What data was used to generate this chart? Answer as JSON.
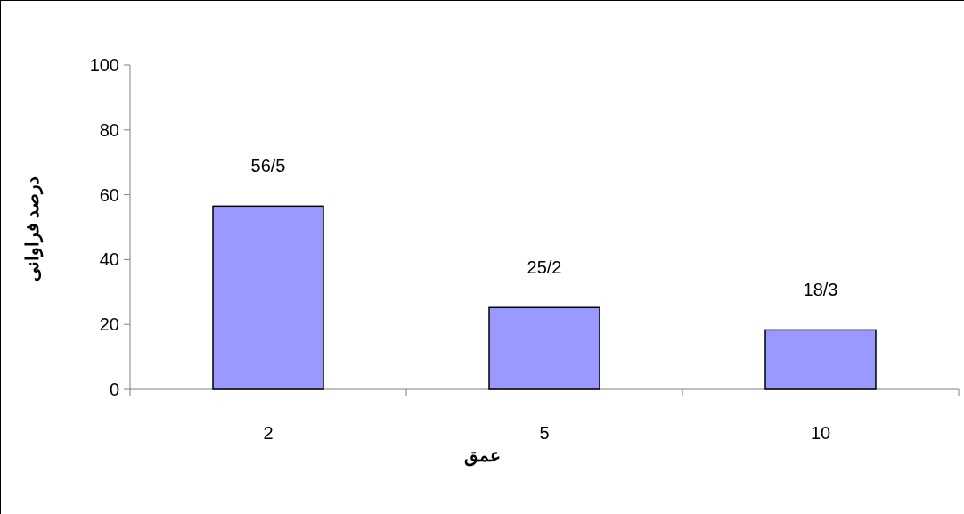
{
  "chart_data": {
    "type": "bar",
    "xlabel": "عمق",
    "ylabel": "درصد فراوانی",
    "categories": [
      "2",
      "5",
      "10"
    ],
    "values": [
      56.5,
      25.2,
      18.3
    ],
    "value_labels": [
      "56/5",
      "25/2",
      "18/3"
    ],
    "color": "#9999ff",
    "ylim": [
      0,
      100
    ],
    "yticks": [
      0,
      20,
      40,
      60,
      80,
      100
    ],
    "grid": false
  }
}
